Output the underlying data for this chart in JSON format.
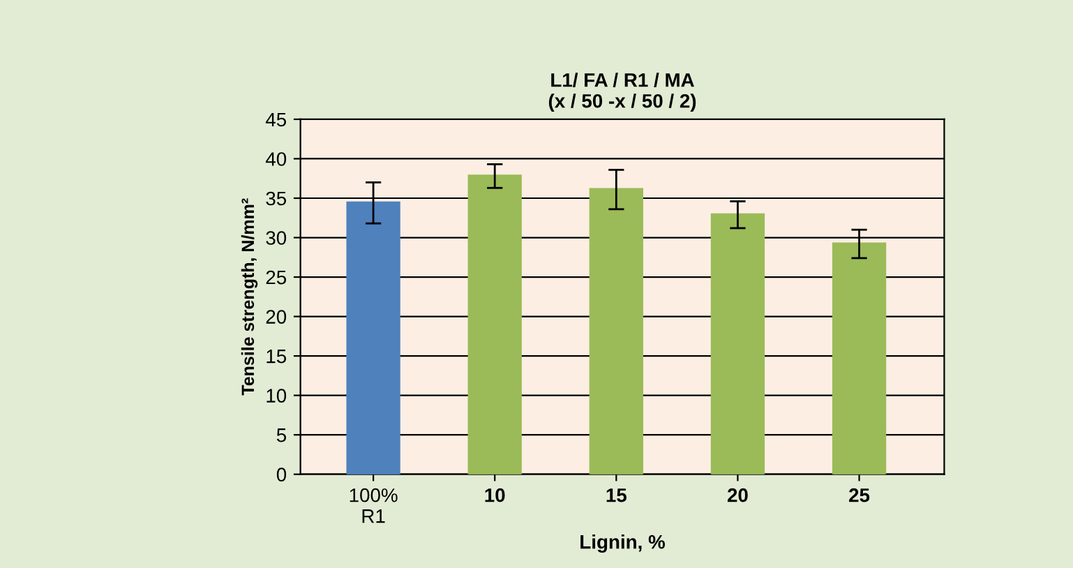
{
  "chart_data": {
    "type": "bar",
    "title": "L1/ FA / R1 / MA\n(x / 50 -x / 50 / 2)",
    "xlabel": "Lignin, %",
    "ylabel": "Tensile strength, N/mm²",
    "categories": [
      "100%\nR1",
      "10",
      "15",
      "20",
      "25"
    ],
    "values": [
      34.4,
      37.8,
      36.1,
      32.9,
      29.2
    ],
    "errors": [
      2.6,
      1.5,
      2.5,
      1.7,
      1.8
    ],
    "colors": [
      "#4f81bd",
      "#9bbb59",
      "#9bbb59",
      "#9bbb59",
      "#9bbb59"
    ],
    "ylim": [
      0,
      45
    ],
    "yticks": [
      0,
      5,
      10,
      15,
      20,
      25,
      30,
      35,
      40,
      45
    ],
    "grid": "y",
    "legend": false
  }
}
